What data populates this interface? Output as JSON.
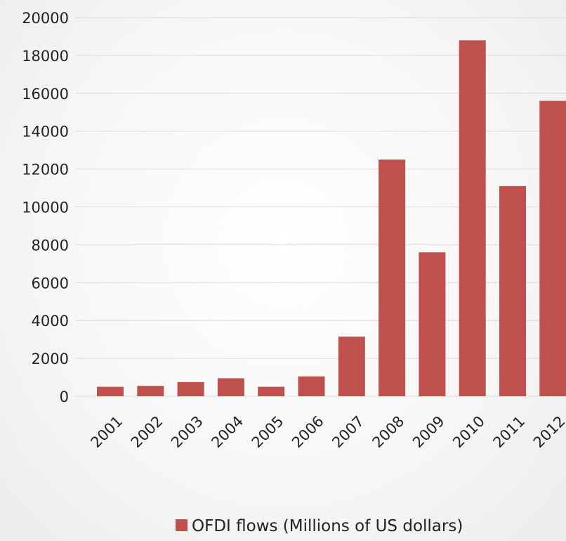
{
  "chart_data": {
    "type": "bar",
    "categories": [
      "2001",
      "2002",
      "2003",
      "2004",
      "2005",
      "2006",
      "2007",
      "2008",
      "2009",
      "2010",
      "2011",
      "2012"
    ],
    "series": [
      {
        "name": "OFDI flows (Millions of US dollars)",
        "values": [
          500,
          550,
          750,
          950,
          500,
          1050,
          3150,
          12500,
          7600,
          18800,
          11100,
          15600
        ],
        "color": "#C0504D"
      }
    ],
    "yticks": [
      "0",
      "2000",
      "4000",
      "6000",
      "8000",
      "10000",
      "12000",
      "14000",
      "16000",
      "18000",
      "20000"
    ],
    "ylim": [
      0,
      20000
    ],
    "grid": true,
    "legend_position": "bottom"
  }
}
